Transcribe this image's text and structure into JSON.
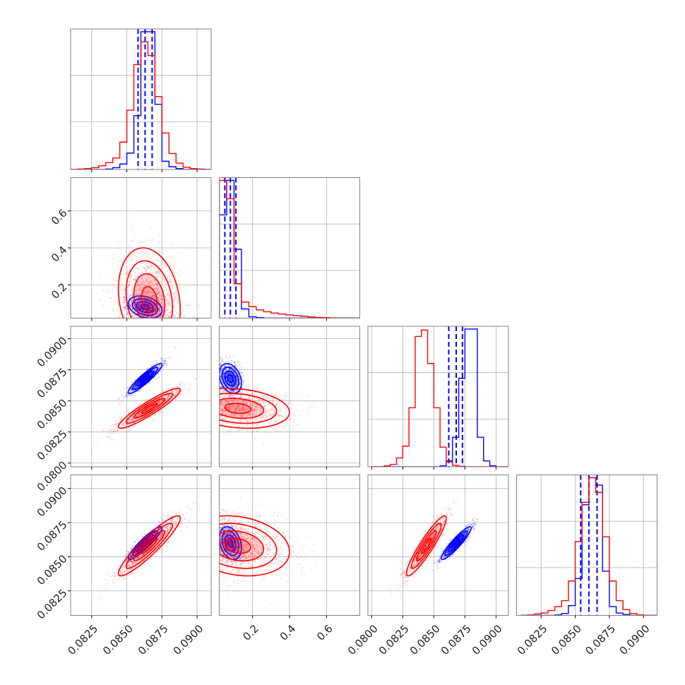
{
  "colors": {
    "blue": "#0000ff",
    "red": "#ff0000",
    "grid": "#b0b0b0",
    "axes": "#808080",
    "text": "#222222"
  },
  "chart_data": {
    "type": "corner",
    "parameters": [
      "",
      "",
      "",
      ""
    ],
    "grid": true,
    "legend": "none",
    "ranges": [
      [
        0.081,
        0.091
      ],
      [
        0.02,
        0.78
      ],
      [
        0.0797,
        0.091
      ],
      [
        0.0807,
        0.091
      ]
    ],
    "ticks": [
      [
        "0.0825",
        "0.0850",
        "0.0875",
        "0.0900"
      ],
      [
        "0.2",
        "0.4",
        "0.6"
      ],
      [
        "0.0800",
        "0.0825",
        "0.0850",
        "0.0875",
        "0.0900"
      ],
      [
        "0.0825",
        "0.0850",
        "0.0875",
        "0.0900"
      ]
    ],
    "tick_values": [
      [
        0.0825,
        0.085,
        0.0875,
        0.09
      ],
      [
        0.2,
        0.4,
        0.6
      ],
      [
        0.08,
        0.0825,
        0.085,
        0.0875,
        0.09
      ],
      [
        0.0825,
        0.085,
        0.0875,
        0.09
      ]
    ],
    "series": [
      {
        "name": "",
        "color": "#0000ff",
        "means": [
          0.0863,
          0.08,
          0.0868,
          0.086
        ],
        "sigmas": [
          0.0006,
          0.03,
          0.0006,
          0.0006
        ],
        "quantiles": [
          [
            0.0858,
            0.0863,
            0.0868
          ],
          [
            0.05,
            0.08,
            0.11
          ],
          [
            0.0862,
            0.0868,
            0.0873
          ],
          [
            0.0854,
            0.086,
            0.0866
          ]
        ],
        "histograms": [
          {
            "edges": [
              0.081,
              0.0815,
              0.082,
              0.0825,
              0.083,
              0.0835,
              0.084,
              0.0845,
              0.085,
              0.0855,
              0.086,
              0.0865,
              0.087,
              0.0875,
              0.088,
              0.0885,
              0.089,
              0.0895,
              0.09,
              0.0905,
              0.091
            ],
            "counts": [
              0,
              0,
              0,
              0,
              0,
              1,
              4,
              12,
              36,
              118,
              302,
              302,
              143,
              18,
              6,
              2,
              0,
              0,
              0,
              0
            ]
          },
          {
            "edges": [
              0.02,
              0.06,
              0.1,
              0.14,
              0.18,
              0.22,
              0.26,
              0.3,
              0.34,
              0.38,
              0.42,
              0.46,
              0.5,
              0.54,
              0.58,
              0.62,
              0.66,
              0.7,
              0.74,
              0.78
            ],
            "counts": [
              450,
              600,
              300,
              40,
              6,
              2,
              0,
              0,
              0,
              0,
              0,
              0,
              0,
              0,
              0,
              0,
              0,
              0,
              0
            ]
          },
          {
            "edges": [
              0.08,
              0.0805,
              0.081,
              0.0815,
              0.082,
              0.0825,
              0.083,
              0.0835,
              0.084,
              0.0845,
              0.085,
              0.0855,
              0.086,
              0.0865,
              0.087,
              0.0875,
              0.088,
              0.0885,
              0.089,
              0.0895,
              0.09,
              0.0905,
              0.091
            ],
            "counts": [
              0,
              0,
              0,
              0,
              0,
              0,
              0,
              0,
              0,
              0,
              0,
              2,
              12,
              60,
              180,
              280,
              280,
              60,
              12,
              2,
              0,
              0
            ]
          },
          {
            "edges": [
              0.081,
              0.0815,
              0.082,
              0.0825,
              0.083,
              0.0835,
              0.084,
              0.0845,
              0.085,
              0.0855,
              0.086,
              0.0865,
              0.087,
              0.0875,
              0.088,
              0.0885,
              0.089,
              0.0895,
              0.09,
              0.0905,
              0.091
            ],
            "counts": [
              0,
              0,
              0,
              0,
              0,
              1,
              4,
              20,
              75,
              225,
              280,
              265,
              90,
              18,
              5,
              2,
              0,
              0,
              0,
              0
            ]
          }
        ]
      },
      {
        "name": "",
        "color": "#ff0000",
        "means": [
          0.0866,
          0.12,
          0.0844,
          0.0858
        ],
        "sigmas": [
          0.0011,
          0.14,
          0.0008,
          0.0011
        ],
        "histograms": [
          {
            "edges": [
              0.081,
              0.0815,
              0.082,
              0.0825,
              0.083,
              0.0835,
              0.084,
              0.0845,
              0.085,
              0.0855,
              0.086,
              0.0865,
              0.087,
              0.0875,
              0.088,
              0.0885,
              0.089,
              0.0895,
              0.09,
              0.0905,
              0.091
            ],
            "counts": [
              0,
              1,
              2,
              4,
              8,
              15,
              25,
              60,
              130,
              230,
              280,
              250,
              160,
              80,
              35,
              14,
              5,
              2,
              1,
              0
            ]
          },
          {
            "edges": [
              0.02,
              0.06,
              0.1,
              0.14,
              0.18,
              0.22,
              0.26,
              0.3,
              0.34,
              0.38,
              0.42,
              0.46,
              0.5,
              0.54,
              0.58,
              0.62,
              0.66,
              0.7,
              0.74,
              0.78
            ],
            "counts": [
              600,
              520,
              150,
              70,
              50,
              36,
              28,
              22,
              18,
              14,
              11,
              8,
              5,
              3,
              2,
              1,
              0,
              0,
              0
            ]
          },
          {
            "edges": [
              0.08,
              0.0805,
              0.081,
              0.0815,
              0.082,
              0.0825,
              0.083,
              0.0835,
              0.084,
              0.0845,
              0.085,
              0.0855,
              0.086,
              0.0865,
              0.087,
              0.0875,
              0.088,
              0.0885,
              0.089,
              0.0895,
              0.09,
              0.0905,
              0.091
            ],
            "counts": [
              0,
              0,
              2,
              5,
              18,
              42,
              120,
              265,
              278,
              210,
              120,
              40,
              10,
              3,
              1,
              0,
              0,
              0,
              0,
              0,
              0,
              0
            ]
          },
          {
            "edges": [
              0.081,
              0.0815,
              0.082,
              0.0825,
              0.083,
              0.0835,
              0.084,
              0.0845,
              0.085,
              0.0855,
              0.086,
              0.0865,
              0.087,
              0.0875,
              0.088,
              0.0885,
              0.089,
              0.0895,
              0.09,
              0.0905,
              0.091
            ],
            "counts": [
              0,
              1,
              3,
              5,
              10,
              18,
              30,
              70,
              150,
              230,
              280,
              250,
              160,
              70,
              30,
              12,
              4,
              1,
              0,
              0
            ]
          }
        ]
      }
    ]
  }
}
